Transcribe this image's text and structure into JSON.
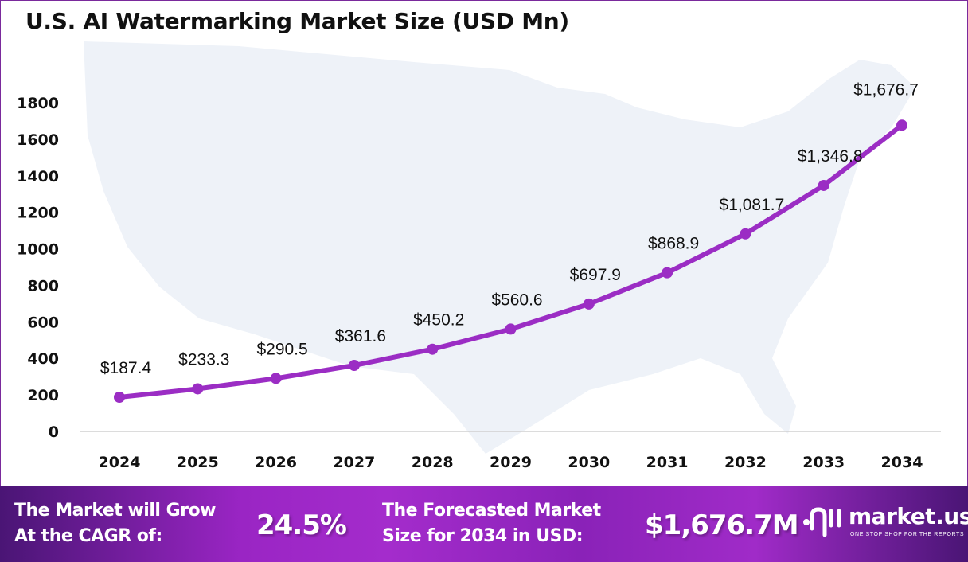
{
  "chart_data": {
    "type": "line",
    "title": "U.S. AI Watermarking Market Size (USD Mn)",
    "categories": [
      "2024",
      "2025",
      "2026",
      "2027",
      "2028",
      "2029",
      "2030",
      "2031",
      "2032",
      "2033",
      "2034"
    ],
    "values": [
      187.4,
      233.3,
      290.5,
      361.6,
      450.2,
      560.6,
      697.9,
      868.9,
      1081.7,
      1346.8,
      1676.7
    ],
    "data_labels": [
      "$187.4",
      "$233.3",
      "$290.5",
      "$361.6",
      "$450.2",
      "$560.6",
      "$697.9",
      "$868.9",
      "$1,081.7",
      "$1,346.8",
      "$1,676.7"
    ],
    "yticks": [
      0,
      200,
      400,
      600,
      800,
      1000,
      1200,
      1400,
      1600,
      1800
    ],
    "ylim": [
      0,
      1800
    ],
    "grid": false,
    "line_color": "#9b2dc4",
    "background": "US map silhouette (light blue-gray)"
  },
  "footer": {
    "cagr_label_line1": "The Market will Grow",
    "cagr_label_line2": "At the CAGR of:",
    "cagr_value": "24.5%",
    "forecast_label_line1": "The Forecasted Market",
    "forecast_label_line2": "Size for 2034 in USD:",
    "forecast_value": "$1,676.7M",
    "brand_name": "market.us",
    "brand_tagline": "ONE STOP SHOP FOR THE REPORTS"
  }
}
